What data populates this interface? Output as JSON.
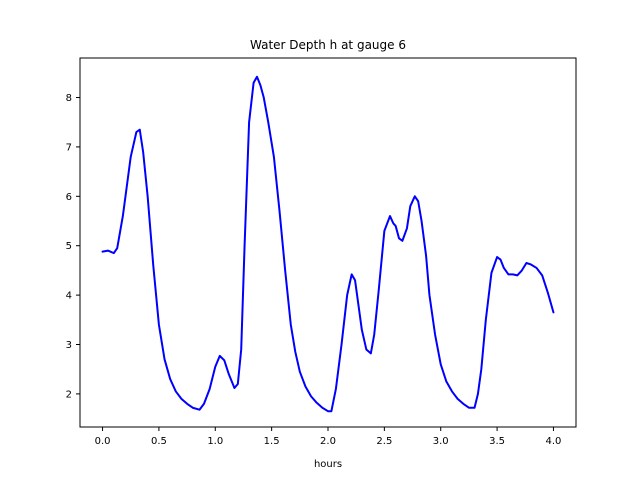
{
  "chart_data": {
    "type": "line",
    "title": "Water Depth h at gauge 6",
    "xlabel": "hours",
    "ylabel": "",
    "xlim": [
      -0.2,
      4.2
    ],
    "ylim": [
      1.33,
      8.8
    ],
    "xticks": [
      0.0,
      0.5,
      1.0,
      1.5,
      2.0,
      2.5,
      3.0,
      3.5,
      4.0
    ],
    "xtick_labels": [
      "0.0",
      "0.5",
      "1.0",
      "1.5",
      "2.0",
      "2.5",
      "3.0",
      "3.5",
      "4.0"
    ],
    "yticks": [
      2,
      3,
      4,
      5,
      6,
      7,
      8
    ],
    "ytick_labels": [
      "2",
      "3",
      "4",
      "5",
      "6",
      "7",
      "8"
    ],
    "grid": false,
    "series": [
      {
        "color": "#0000ff",
        "x": [
          0.0,
          0.05,
          0.1,
          0.13,
          0.18,
          0.25,
          0.3,
          0.33,
          0.36,
          0.4,
          0.45,
          0.5,
          0.55,
          0.6,
          0.65,
          0.7,
          0.75,
          0.8,
          0.86,
          0.9,
          0.95,
          1.0,
          1.04,
          1.08,
          1.12,
          1.17,
          1.2,
          1.23,
          1.26,
          1.3,
          1.34,
          1.37,
          1.4,
          1.43,
          1.47,
          1.52,
          1.57,
          1.62,
          1.67,
          1.71,
          1.75,
          1.8,
          1.85,
          1.9,
          1.95,
          2.0,
          2.03,
          2.07,
          2.12,
          2.17,
          2.21,
          2.24,
          2.27,
          2.3,
          2.34,
          2.38,
          2.41,
          2.45,
          2.5,
          2.55,
          2.58,
          2.6,
          2.63,
          2.66,
          2.7,
          2.73,
          2.77,
          2.8,
          2.83,
          2.87,
          2.9,
          2.95,
          3.0,
          3.05,
          3.1,
          3.15,
          3.2,
          3.25,
          3.3,
          3.33,
          3.36,
          3.4,
          3.45,
          3.5,
          3.53,
          3.56,
          3.6,
          3.64,
          3.68,
          3.72,
          3.76,
          3.8,
          3.85,
          3.9,
          3.95,
          4.0
        ],
        "y": [
          4.88,
          4.9,
          4.85,
          4.95,
          5.6,
          6.8,
          7.3,
          7.35,
          6.9,
          6.0,
          4.6,
          3.4,
          2.7,
          2.3,
          2.05,
          1.9,
          1.8,
          1.72,
          1.68,
          1.8,
          2.1,
          2.55,
          2.77,
          2.68,
          2.4,
          2.12,
          2.2,
          2.9,
          5.0,
          7.5,
          8.3,
          8.42,
          8.25,
          8.0,
          7.5,
          6.8,
          5.7,
          4.5,
          3.4,
          2.85,
          2.45,
          2.15,
          1.95,
          1.82,
          1.72,
          1.65,
          1.65,
          2.1,
          3.0,
          4.0,
          4.42,
          4.3,
          3.8,
          3.3,
          2.9,
          2.82,
          3.2,
          4.1,
          5.3,
          5.6,
          5.45,
          5.4,
          5.15,
          5.1,
          5.35,
          5.8,
          6.0,
          5.9,
          5.5,
          4.8,
          4.0,
          3.2,
          2.6,
          2.25,
          2.05,
          1.9,
          1.8,
          1.72,
          1.72,
          2.0,
          2.5,
          3.5,
          4.45,
          4.77,
          4.72,
          4.55,
          4.42,
          4.42,
          4.4,
          4.5,
          4.65,
          4.62,
          4.55,
          4.4,
          4.05,
          3.65
        ]
      }
    ]
  }
}
